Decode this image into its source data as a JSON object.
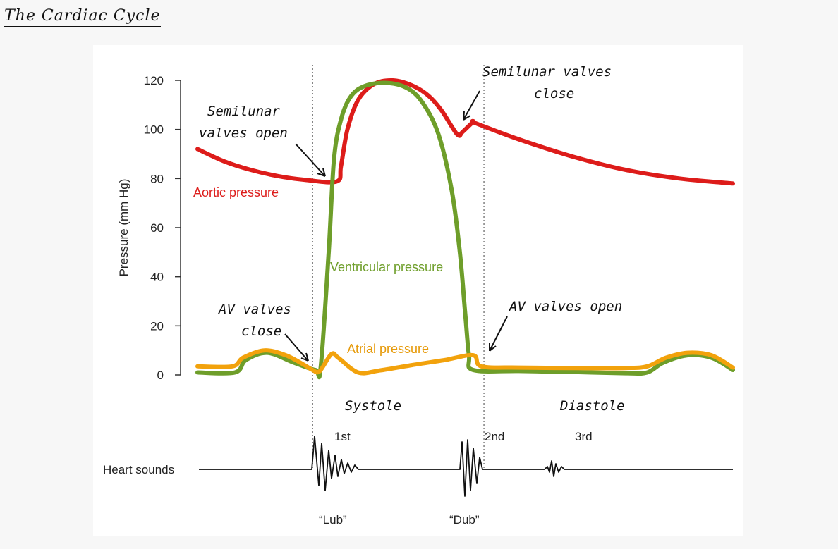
{
  "page": {
    "title": "The Cardiac Cycle"
  },
  "colors": {
    "aortic": "#dd1c1a",
    "ventricular": "#6e9e2a",
    "atrial": "#f2a20c",
    "ink": "#111111"
  },
  "chart_data": {
    "type": "line",
    "title": "",
    "xlabel": "",
    "ylabel": "Pressure (mm Hg)",
    "ylim": [
      0,
      120
    ],
    "yticks": [
      "0",
      "20",
      "40",
      "60",
      "80",
      "100",
      "120"
    ],
    "xlim": [
      0,
      1
    ],
    "series": [
      {
        "name": "Aortic pressure",
        "color": "#dd1c1a",
        "points": [
          [
            0.0,
            92
          ],
          [
            0.05,
            87
          ],
          [
            0.1,
            83.5
          ],
          [
            0.15,
            81
          ],
          [
            0.2,
            79.5
          ],
          [
            0.26,
            78.8
          ],
          [
            0.268,
            85
          ],
          [
            0.28,
            100
          ],
          [
            0.3,
            112
          ],
          [
            0.33,
            118.5
          ],
          [
            0.365,
            120
          ],
          [
            0.4,
            118
          ],
          [
            0.43,
            114
          ],
          [
            0.455,
            108
          ],
          [
            0.485,
            98
          ],
          [
            0.495,
            99
          ],
          [
            0.515,
            103
          ],
          [
            0.52,
            102.5
          ],
          [
            0.6,
            96
          ],
          [
            0.7,
            89
          ],
          [
            0.8,
            83.5
          ],
          [
            0.9,
            80
          ],
          [
            1.0,
            78
          ]
        ]
      },
      {
        "name": "Ventricular pressure",
        "color": "#6e9e2a",
        "points": [
          [
            0.0,
            1
          ],
          [
            0.07,
            1
          ],
          [
            0.09,
            6
          ],
          [
            0.13,
            9
          ],
          [
            0.18,
            5
          ],
          [
            0.22,
            2
          ],
          [
            0.23,
            3
          ],
          [
            0.245,
            50
          ],
          [
            0.255,
            88
          ],
          [
            0.268,
            104
          ],
          [
            0.285,
            113
          ],
          [
            0.31,
            117.5
          ],
          [
            0.35,
            119
          ],
          [
            0.39,
            117
          ],
          [
            0.42,
            111
          ],
          [
            0.45,
            98
          ],
          [
            0.475,
            75
          ],
          [
            0.49,
            50
          ],
          [
            0.5,
            25
          ],
          [
            0.507,
            8
          ],
          [
            0.515,
            2
          ],
          [
            0.6,
            1.6
          ],
          [
            0.7,
            1.2
          ],
          [
            0.8,
            0.7
          ],
          [
            0.84,
            1
          ],
          [
            0.87,
            5
          ],
          [
            0.915,
            8
          ],
          [
            0.96,
            7
          ],
          [
            1.0,
            2
          ]
        ]
      },
      {
        "name": "Atrial pressure",
        "color": "#f2a20c",
        "points": [
          [
            0.0,
            3.5
          ],
          [
            0.065,
            3.5
          ],
          [
            0.085,
            7
          ],
          [
            0.125,
            10
          ],
          [
            0.165,
            8
          ],
          [
            0.2,
            4
          ],
          [
            0.215,
            2
          ],
          [
            0.228,
            1.5
          ],
          [
            0.25,
            8.5
          ],
          [
            0.263,
            7
          ],
          [
            0.3,
            1
          ],
          [
            0.34,
            1.8
          ],
          [
            0.4,
            4
          ],
          [
            0.46,
            6
          ],
          [
            0.515,
            8
          ],
          [
            0.53,
            3.5
          ],
          [
            0.6,
            3
          ],
          [
            0.7,
            2.8
          ],
          [
            0.8,
            2.8
          ],
          [
            0.84,
            3.5
          ],
          [
            0.875,
            7
          ],
          [
            0.915,
            9
          ],
          [
            0.96,
            8
          ],
          [
            1.0,
            3
          ]
        ]
      }
    ],
    "series_labels": [
      "Aortic pressure",
      "Ventricular pressure",
      "Atrial pressure"
    ],
    "dotted_markers": [
      0.215,
      0.535
    ],
    "annotations": {
      "semilunar_open": [
        "Semilunar",
        "valves open"
      ],
      "semilunar_close": [
        "Semilunar valves",
        "close"
      ],
      "av_close": [
        "AV valves",
        "close"
      ],
      "av_open": "AV valves open",
      "systole": "Systole",
      "diastole": "Diastole"
    },
    "heart_sounds": {
      "label": "Heart sounds",
      "sounds": [
        {
          "name": "1st",
          "word": "“Lub”"
        },
        {
          "name": "2nd",
          "word": "“Dub”"
        },
        {
          "name": "3rd",
          "word": ""
        }
      ]
    }
  }
}
